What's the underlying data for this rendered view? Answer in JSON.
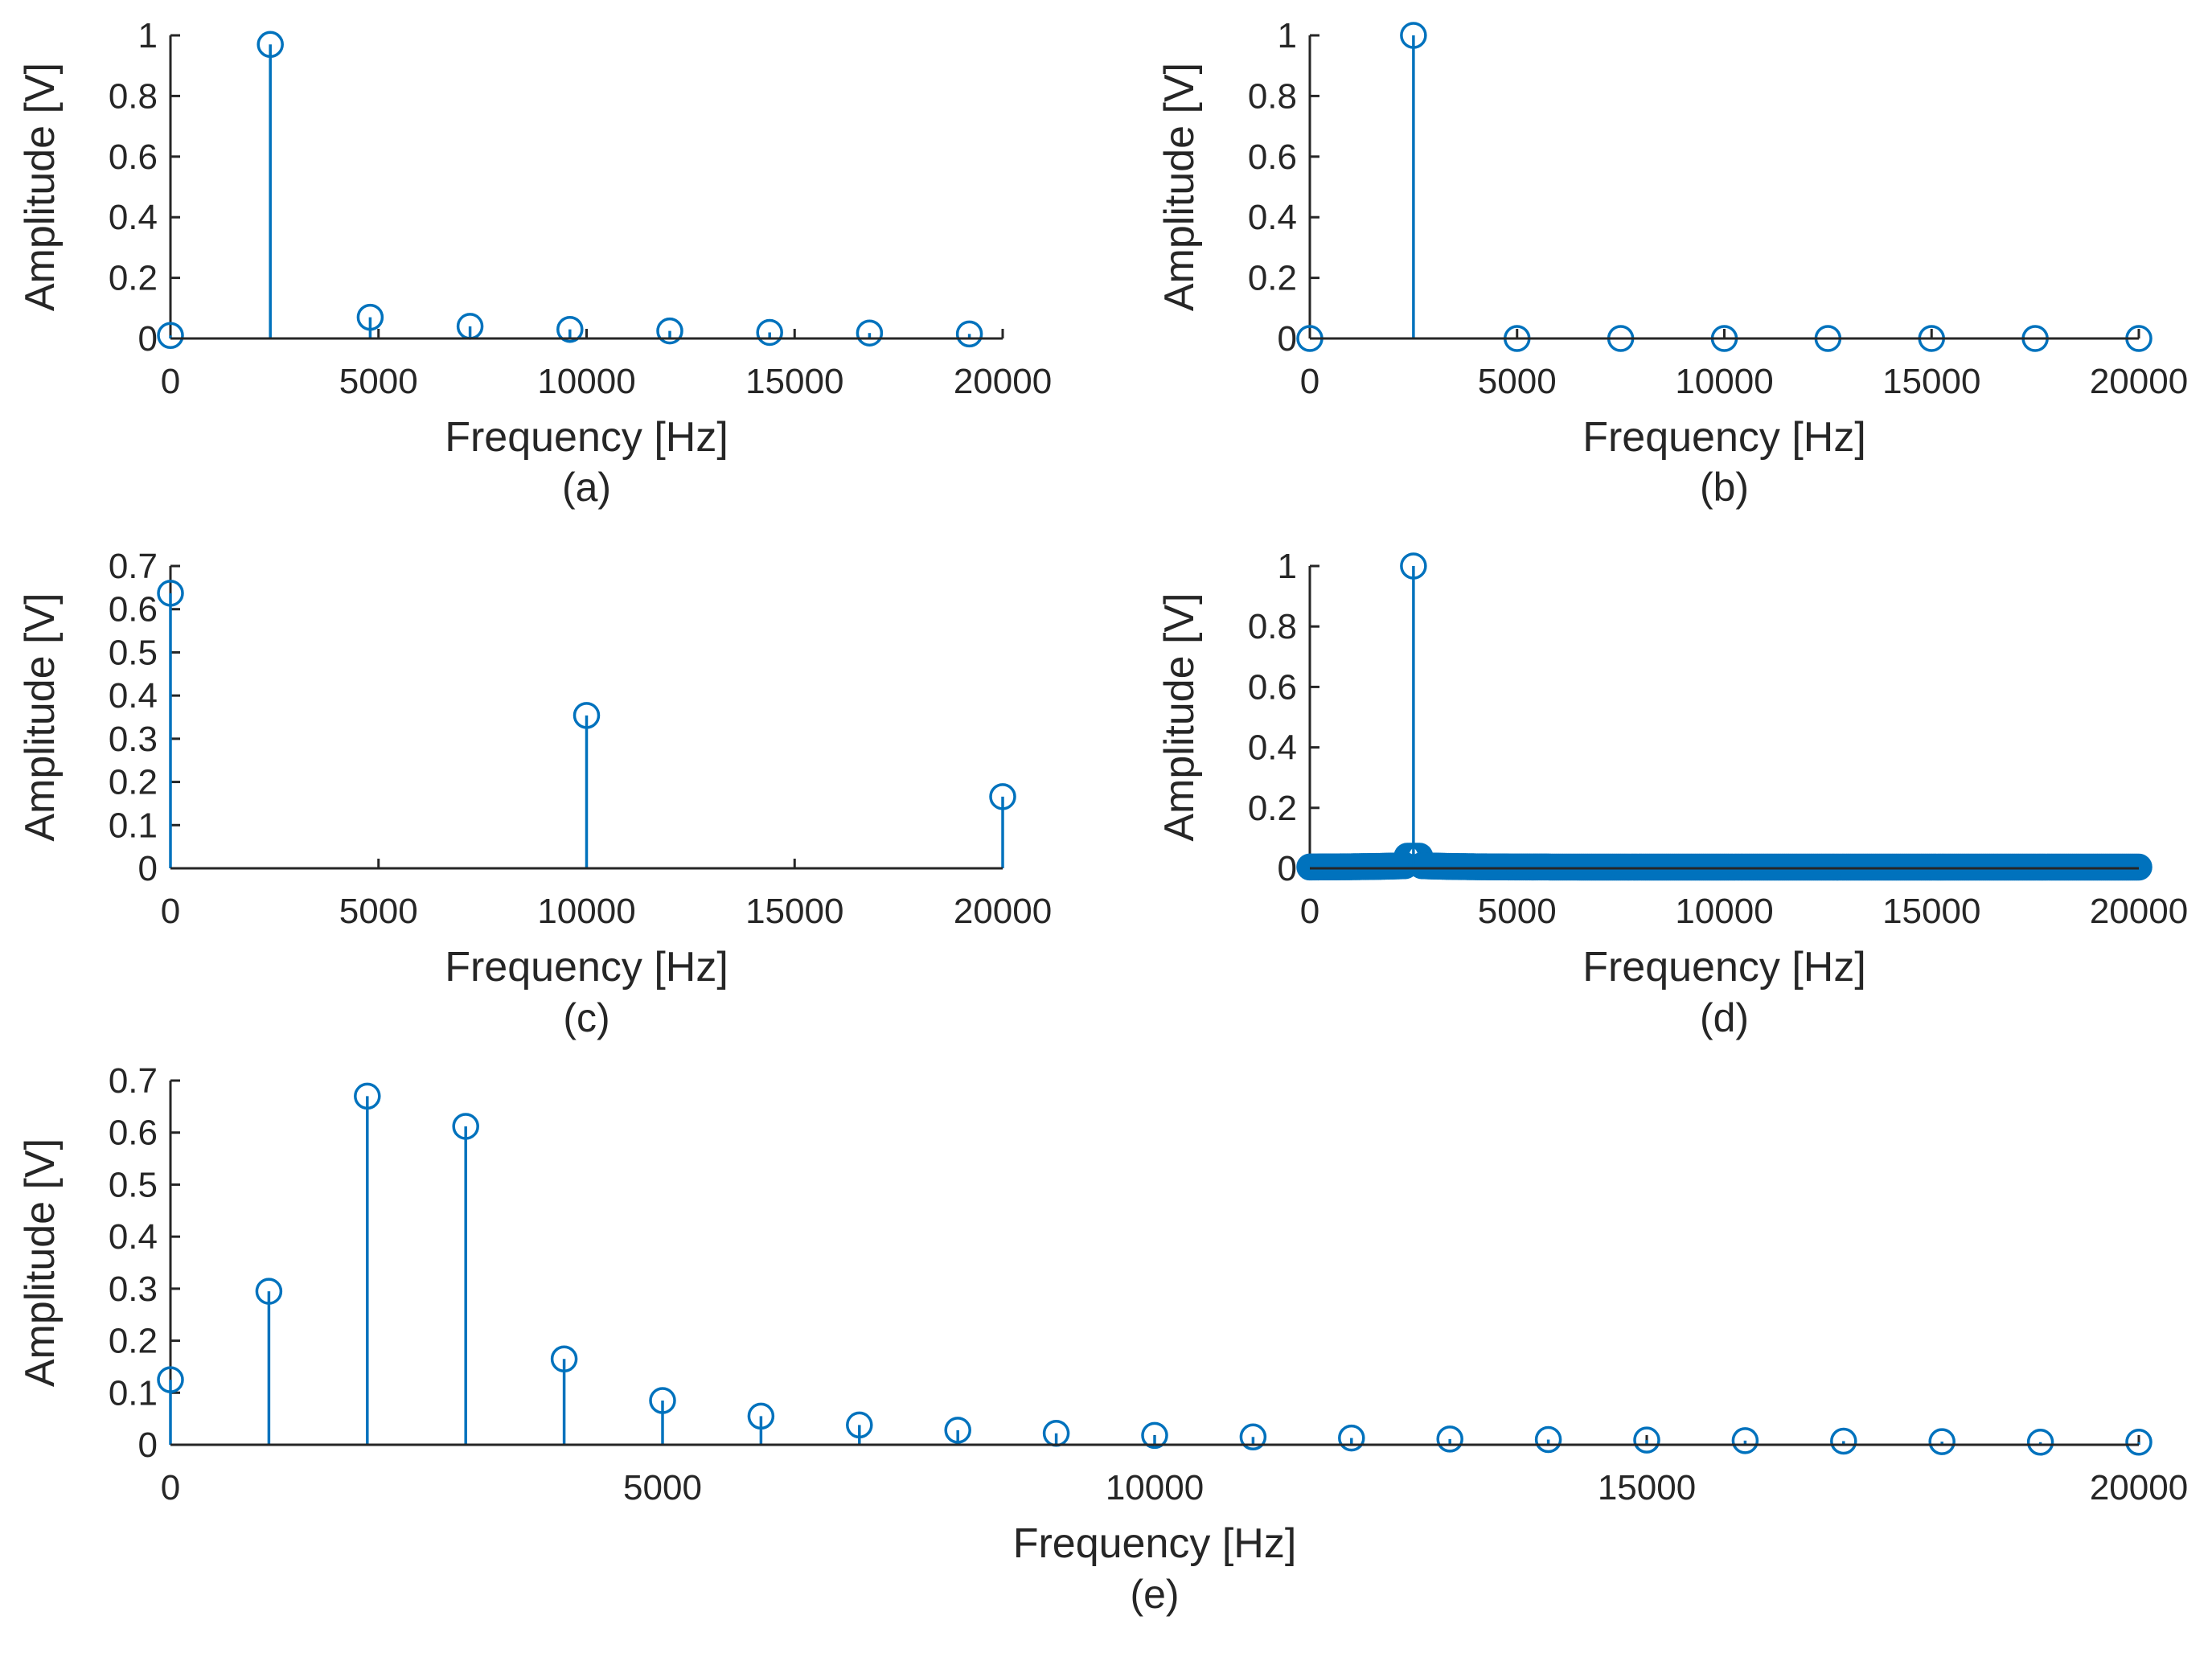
{
  "colors": {
    "series": "#0072bd",
    "axis": "#262626"
  },
  "chart_data": [
    {
      "type": "stem",
      "caption": "(a)",
      "xlabel": "Frequency [Hz]",
      "ylabel": "Amplitude [V]",
      "xlim": [
        0,
        20000
      ],
      "ylim": [
        0,
        1
      ],
      "xticks": [
        0,
        5000,
        10000,
        15000,
        20000
      ],
      "yticks": [
        0,
        0.2,
        0.4,
        0.6,
        0.8,
        1
      ],
      "x": [
        0,
        2400,
        4800,
        7200,
        9600,
        12000,
        14400,
        16800,
        19200
      ],
      "y": [
        0.01,
        0.97,
        0.07,
        0.04,
        0.03,
        0.025,
        0.02,
        0.018,
        0.015
      ]
    },
    {
      "type": "stem",
      "caption": "(b)",
      "xlabel": "Frequency [Hz]",
      "ylabel": "Amplitude [V]",
      "xlim": [
        0,
        20000
      ],
      "ylim": [
        0,
        1
      ],
      "xticks": [
        0,
        5000,
        10000,
        15000,
        20000
      ],
      "yticks": [
        0,
        0.2,
        0.4,
        0.6,
        0.8,
        1
      ],
      "x": [
        0,
        2500,
        5000,
        7500,
        10000,
        12500,
        15000,
        17500,
        20000
      ],
      "y": [
        0,
        1.0,
        0,
        0,
        0,
        0,
        0,
        0,
        0
      ]
    },
    {
      "type": "stem",
      "caption": "(c)",
      "xlabel": "Frequency [Hz]",
      "ylabel": "Amplitude [V]",
      "xlim": [
        0,
        20000
      ],
      "ylim": [
        0,
        0.7
      ],
      "xticks": [
        0,
        5000,
        10000,
        15000,
        20000
      ],
      "yticks": [
        0,
        0.1,
        0.2,
        0.3,
        0.4,
        0.5,
        0.6,
        0.7
      ],
      "x": [
        0,
        10000,
        20000
      ],
      "y": [
        0.637,
        0.354,
        0.166
      ]
    },
    {
      "type": "stem",
      "caption": "(d)",
      "xlabel": "Frequency [Hz]",
      "ylabel": "Amplitude [V]",
      "xlim": [
        0,
        20000
      ],
      "ylim": [
        0,
        1
      ],
      "xticks": [
        0,
        5000,
        10000,
        15000,
        20000
      ],
      "yticks": [
        0,
        0.2,
        0.4,
        0.6,
        0.8,
        1
      ],
      "dense_background": {
        "x_start": 0,
        "x_end": 20000,
        "step": 50,
        "peak_x": 2500,
        "peak_y": 1.0,
        "side_y": 0.04
      },
      "x": [
        2500
      ],
      "y": [
        1.0
      ]
    },
    {
      "type": "stem",
      "caption": "(e)",
      "xlabel": "Frequency [Hz]",
      "ylabel": "Amplitude [V]",
      "xlim": [
        0,
        20000
      ],
      "ylim": [
        0,
        0.7
      ],
      "xticks": [
        0,
        5000,
        10000,
        15000,
        20000
      ],
      "yticks": [
        0,
        0.1,
        0.2,
        0.3,
        0.4,
        0.5,
        0.6,
        0.7
      ],
      "x": [
        0,
        1000,
        2000,
        3000,
        4000,
        5000,
        6000,
        7000,
        8000,
        9000,
        10000,
        11000,
        12000,
        13000,
        14000,
        15000,
        16000,
        17000,
        18000,
        19000,
        20000
      ],
      "y": [
        0.125,
        0.295,
        0.67,
        0.612,
        0.165,
        0.085,
        0.055,
        0.038,
        0.028,
        0.022,
        0.018,
        0.015,
        0.013,
        0.011,
        0.01,
        0.009,
        0.008,
        0.007,
        0.006,
        0.005,
        0.005
      ]
    }
  ]
}
